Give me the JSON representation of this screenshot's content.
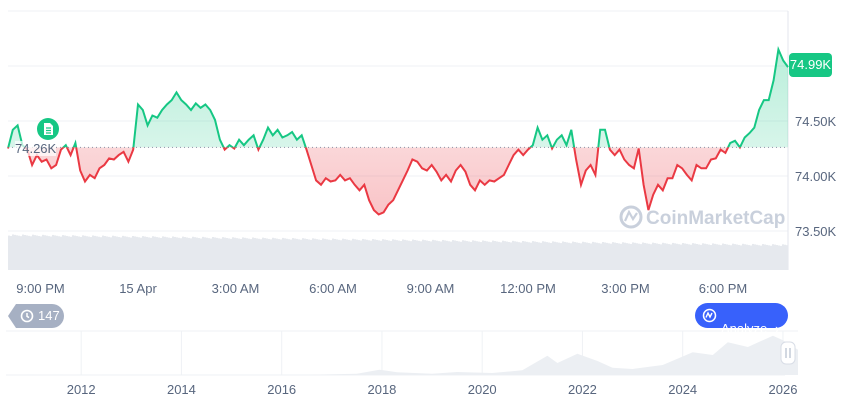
{
  "chart_data": {
    "type": "line",
    "title": "",
    "current_price_label": "74.99K",
    "baseline_label": "74.26K",
    "baseline": 74.26,
    "y_unit": "K USD",
    "ylim": [
      73.3,
      75.35
    ],
    "y_ticks": [
      {
        "value": 74.5,
        "label": "74.50K"
      },
      {
        "value": 74.0,
        "label": "74.00K"
      },
      {
        "value": 73.5,
        "label": "73.50K"
      }
    ],
    "x_range_hours": [
      -4,
      20
    ],
    "x_ticks": [
      {
        "hour": -3,
        "label": "9:00 PM"
      },
      {
        "hour": 0,
        "label": "15 Apr"
      },
      {
        "hour": 3,
        "label": "3:00 AM"
      },
      {
        "hour": 6,
        "label": "6:00 AM"
      },
      {
        "hour": 9,
        "label": "9:00 AM"
      },
      {
        "hour": 12,
        "label": "12:00 PM"
      },
      {
        "hour": 15,
        "label": "3:00 PM"
      },
      {
        "hour": 18,
        "label": "6:00 PM"
      }
    ],
    "colors": {
      "up": "#16c784",
      "down": "#ea3943",
      "grid": "#eff2f5",
      "volume": "#e6e9ee"
    },
    "prices": [
      74.25,
      74.42,
      74.46,
      74.28,
      74.24,
      74.1,
      74.19,
      74.13,
      74.15,
      74.07,
      74.1,
      74.24,
      74.28,
      74.19,
      74.3,
      74.05,
      73.95,
      74.01,
      73.98,
      74.07,
      74.1,
      74.16,
      74.15,
      74.19,
      74.22,
      74.13,
      74.24,
      74.65,
      74.6,
      74.46,
      74.55,
      74.53,
      74.6,
      74.65,
      74.69,
      74.76,
      74.69,
      74.65,
      74.6,
      74.66,
      74.62,
      74.65,
      74.6,
      74.51,
      74.33,
      74.24,
      74.28,
      74.25,
      74.33,
      74.28,
      74.33,
      74.37,
      74.24,
      74.33,
      74.44,
      74.37,
      74.42,
      74.35,
      74.37,
      74.4,
      74.33,
      74.37,
      74.24,
      74.1,
      73.96,
      73.92,
      73.98,
      73.95,
      73.96,
      74.01,
      73.96,
      73.98,
      73.92,
      73.87,
      73.92,
      73.78,
      73.69,
      73.65,
      73.67,
      73.74,
      73.78,
      73.87,
      73.96,
      74.05,
      74.15,
      74.13,
      74.07,
      74.05,
      74.1,
      74.04,
      73.96,
      74.01,
      73.95,
      74.05,
      74.1,
      74.04,
      73.92,
      73.87,
      73.96,
      73.92,
      73.96,
      73.95,
      73.98,
      74.01,
      74.1,
      74.19,
      74.24,
      74.19,
      74.24,
      74.28,
      74.44,
      74.33,
      74.37,
      74.25,
      74.33,
      74.37,
      74.28,
      74.42,
      74.15,
      73.92,
      74.05,
      74.1,
      74.01,
      74.42,
      74.42,
      74.24,
      74.19,
      74.24,
      74.15,
      74.1,
      74.07,
      74.25,
      73.92,
      73.69,
      73.83,
      73.92,
      73.87,
      73.98,
      73.98,
      74.1,
      74.07,
      74.01,
      73.96,
      74.1,
      74.07,
      74.07,
      74.15,
      74.16,
      74.24,
      74.21,
      74.3,
      74.32,
      74.26,
      74.35,
      74.39,
      74.44,
      74.6,
      74.69,
      74.69,
      74.87,
      75.15,
      75.05,
      74.99
    ],
    "navigator": {
      "x_range_years": [
        2010.5,
        2026.3
      ],
      "x_ticks": [
        "2012",
        "2014",
        "2016",
        "2018",
        "2020",
        "2022",
        "2024",
        "2026"
      ],
      "points": [
        [
          2010.5,
          0
        ],
        [
          2016.5,
          0.5
        ],
        [
          2017.5,
          4
        ],
        [
          2017.95,
          16
        ],
        [
          2018.3,
          8
        ],
        [
          2019,
          4
        ],
        [
          2019.5,
          9
        ],
        [
          2020.2,
          6
        ],
        [
          2020.8,
          14
        ],
        [
          2021.3,
          58
        ],
        [
          2021.5,
          36
        ],
        [
          2021.9,
          64
        ],
        [
          2022.3,
          42
        ],
        [
          2022.6,
          22
        ],
        [
          2023,
          18
        ],
        [
          2023.6,
          30
        ],
        [
          2024.2,
          68
        ],
        [
          2024.6,
          60
        ],
        [
          2024.9,
          98
        ],
        [
          2025.3,
          84
        ],
        [
          2025.8,
          118
        ],
        [
          2026.0,
          104
        ],
        [
          2026.3,
          76
        ]
      ]
    }
  },
  "watermark": "CoinMarketCap",
  "history_badge": {
    "count": "147"
  },
  "analyze_button": {
    "label": "Analyze"
  }
}
